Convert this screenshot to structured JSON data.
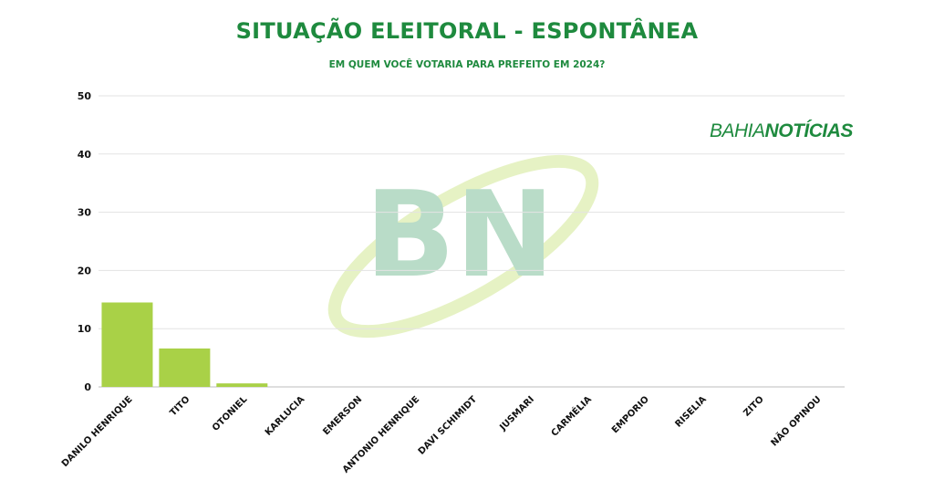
{
  "header": {
    "title": "SITUAÇÃO ELEITORAL - ESPONTÂNEA",
    "subtitle": "EM QUEM VOCÊ VOTARIA PARA PREFEITO EM 2024?"
  },
  "brand": {
    "part1": "BAHIA",
    "part2": "NOTÍCIAS",
    "watermark": "BN"
  },
  "colors": {
    "bar": "#a9d147",
    "title": "#1e8a3e",
    "watermark_letters": "#b9dcc8",
    "watermark_swoosh": "#e6f2c4"
  },
  "chart_data": {
    "type": "bar",
    "categories": [
      "DANILO HENRIQUE",
      "TITO",
      "OTONIEL",
      "KARLUCIA",
      "EMERSON",
      "ANTONIO HENRIQUE",
      "DAVI SCHIMIDT",
      "JUSMARI",
      "CARMÉLIA",
      "EMPORIO",
      "RISELIA",
      "ZITO",
      "NÃO OPINOU"
    ],
    "values": [
      14.5,
      6.6,
      0.6,
      0,
      0,
      0,
      0,
      0,
      0,
      0,
      0,
      0,
      0
    ],
    "ylim": [
      0,
      50
    ],
    "yticks": [
      0,
      10,
      20,
      30,
      40,
      50
    ],
    "grid": true,
    "title": "SITUAÇÃO ELEITORAL - ESPONTÂNEA",
    "subtitle": "EM QUEM VOCÊ VOTARIA PARA PREFEITO EM 2024?"
  }
}
